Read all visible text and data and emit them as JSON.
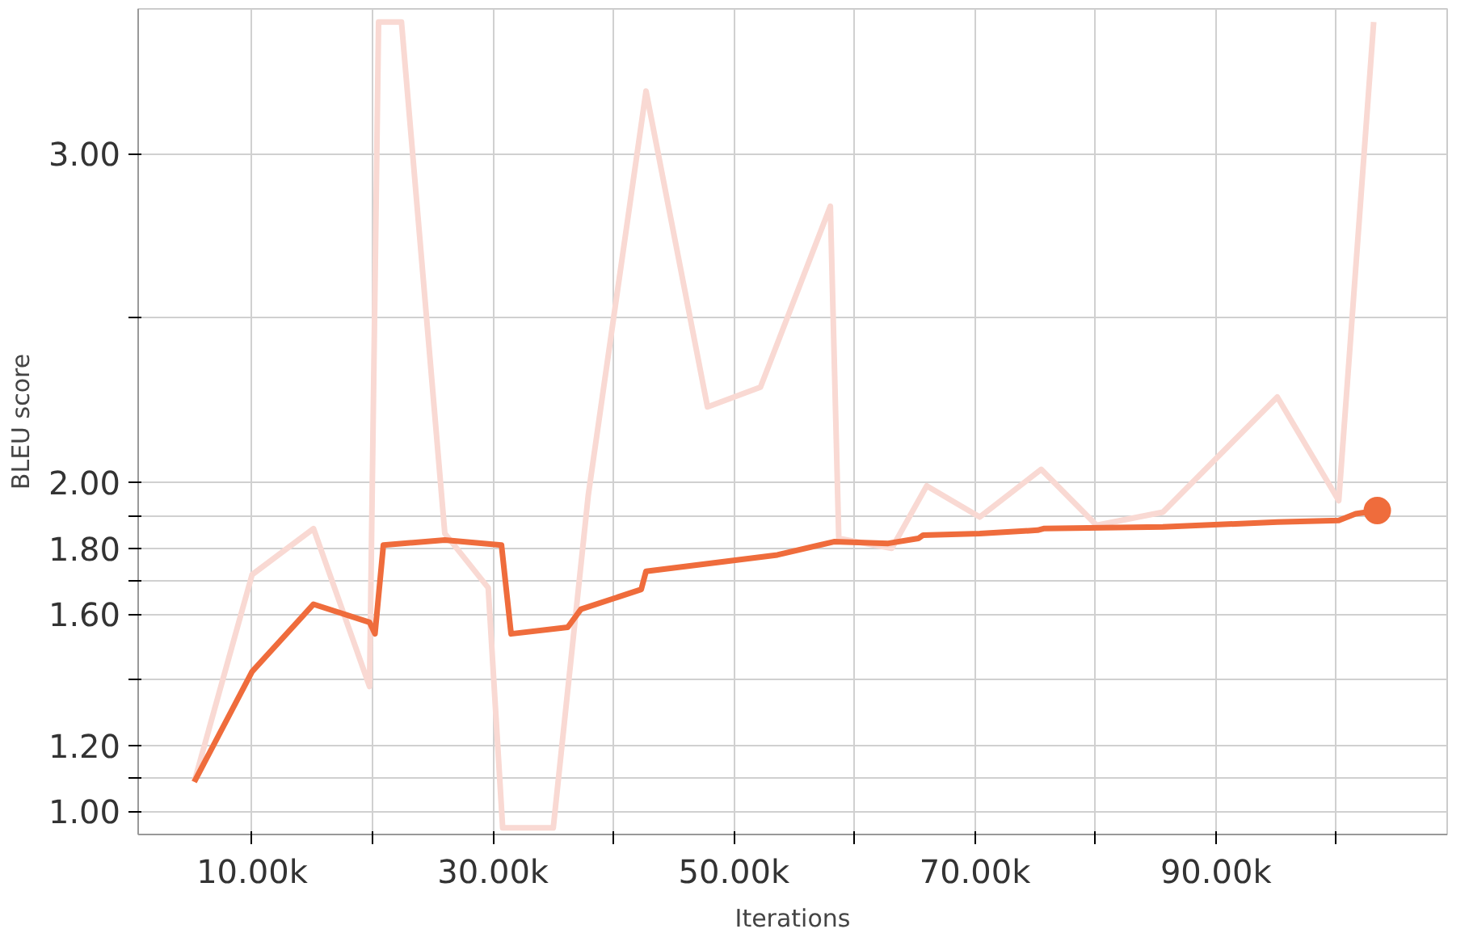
{
  "chart_data": {
    "type": "line",
    "xlabel": "Iterations",
    "ylabel": "BLEU score",
    "xlim": [
      545,
      109200
    ],
    "ylim": [
      0.93,
      3.44
    ],
    "xticks": [
      {
        "value": 10000,
        "label": "10.00k"
      },
      {
        "value": 20000,
        "label": null
      },
      {
        "value": 30000,
        "label": "30.00k"
      },
      {
        "value": 40000,
        "label": null
      },
      {
        "value": 50000,
        "label": "50.00k"
      },
      {
        "value": 60000,
        "label": null
      },
      {
        "value": 70000,
        "label": "70.00k"
      },
      {
        "value": 80000,
        "label": null
      },
      {
        "value": 90000,
        "label": "90.00k"
      },
      {
        "value": 100000,
        "label": null
      }
    ],
    "yticks": [
      {
        "value": 1.0,
        "label": "1.00"
      },
      {
        "value": 1.1,
        "label": null
      },
      {
        "value": 1.2,
        "label": "1.20"
      },
      {
        "value": 1.4,
        "label": null
      },
      {
        "value": 1.6,
        "label": "1.60"
      },
      {
        "value": 1.7,
        "label": null
      },
      {
        "value": 1.8,
        "label": "1.80"
      },
      {
        "value": 1.9,
        "label": null
      },
      {
        "value": 2.0,
        "label": "2.00"
      },
      {
        "value": 2.5,
        "label": null
      },
      {
        "value": 3.0,
        "label": "3.00"
      }
    ],
    "grid": true,
    "series": [
      {
        "color": "#f9d9d3",
        "x": [
          5200,
          10000,
          15100,
          19750,
          20500,
          22400,
          26000,
          29600,
          30800,
          35000,
          37900,
          42700,
          47800,
          52200,
          58000,
          58700,
          63100,
          66000,
          70400,
          75500,
          80100,
          85600,
          95100,
          100200,
          103100
        ],
        "values": [
          1.09,
          1.72,
          1.86,
          1.38,
          3.4,
          3.4,
          1.845,
          1.68,
          0.95,
          0.95,
          1.96,
          3.19,
          2.23,
          2.29,
          2.84,
          1.83,
          1.8,
          1.99,
          1.895,
          2.04,
          1.87,
          1.91,
          2.26,
          1.945,
          3.4
        ]
      },
      {
        "color": "#ef6c3c",
        "x": [
          5200,
          10000,
          15100,
          19750,
          20200,
          20900,
          26000,
          30700,
          31500,
          36200,
          37300,
          42300,
          42700,
          53600,
          58300,
          62800,
          65300,
          65700,
          70400,
          75200,
          75700,
          85600,
          95100,
          100200,
          101600,
          103400
        ],
        "values": [
          1.09,
          1.425,
          1.63,
          1.575,
          1.54,
          1.81,
          1.825,
          1.81,
          1.54,
          1.56,
          1.615,
          1.675,
          1.73,
          1.78,
          1.82,
          1.815,
          1.83,
          1.84,
          1.845,
          1.855,
          1.86,
          1.865,
          1.88,
          1.885,
          1.905,
          1.915
        ]
      }
    ]
  }
}
